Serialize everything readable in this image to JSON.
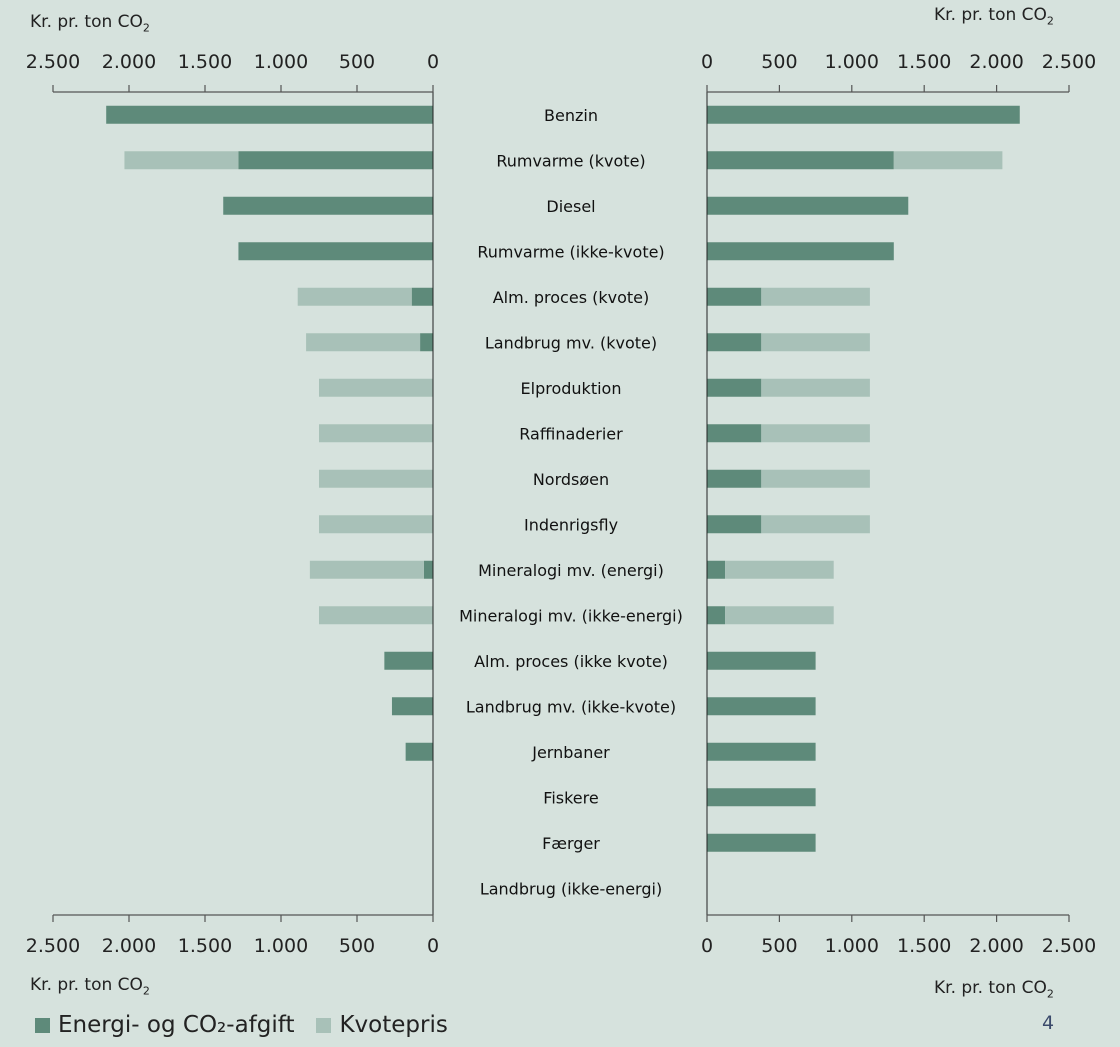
{
  "axis_unit_label": "Kr. pr.  ton CO",
  "axis_unit_sub": "2",
  "legend": [
    {
      "label": "Energi- og CO₂-afgift",
      "color": "#5e8a7a"
    },
    {
      "label": "Kvotepris",
      "color": "#a8c1b8"
    }
  ],
  "page_number": "4",
  "colors": {
    "background": "#d6e2dd",
    "energy": "#5e8a7a",
    "quota": "#a8c1b8",
    "axis": "#555555"
  },
  "chart_data": [
    {
      "type": "bar",
      "orientation": "horizontal",
      "stacked": true,
      "reversed_x": true,
      "xlabel": "Kr. pr.  ton CO2",
      "xlim": [
        0,
        2500
      ],
      "ticks": [
        2500,
        2000,
        1500,
        1000,
        500,
        0
      ],
      "tick_labels": [
        "2.500",
        "2.000",
        "1.500",
        "1.000",
        "500",
        "0"
      ],
      "categories": [
        "Benzin",
        "Rumvarme (kvote)",
        "Diesel",
        "Rumvarme (ikke-kvote)",
        "Alm. proces (kvote)",
        "Landbrug mv. (kvote)",
        "Elproduktion",
        "Raffinaderier",
        "Nordsøen",
        "Indenrigsfly",
        "Mineralogi mv. (energi)",
        "Mineralogi mv. (ikke-energi)",
        "Alm. proces (ikke kvote)",
        "Landbrug mv. (ikke-kvote)",
        "Jernbaner",
        "Fiskere",
        "Færger",
        "Landbrug (ikke-energi)"
      ],
      "series": [
        {
          "name": "Energi- og CO₂-afgift",
          "values": [
            2150,
            1280,
            1380,
            1280,
            140,
            85,
            0,
            0,
            0,
            0,
            60,
            0,
            320,
            270,
            180,
            0,
            0,
            0
          ]
        },
        {
          "name": "Kvotepris",
          "values": [
            0,
            750,
            0,
            0,
            750,
            750,
            750,
            750,
            750,
            750,
            750,
            750,
            0,
            0,
            0,
            0,
            0,
            0
          ]
        }
      ]
    },
    {
      "type": "bar",
      "orientation": "horizontal",
      "stacked": true,
      "xlabel": "Kr. pr.  ton CO2",
      "xlim": [
        0,
        2500
      ],
      "ticks": [
        0,
        500,
        1000,
        1500,
        2000,
        2500
      ],
      "tick_labels": [
        "0",
        "500",
        "1.000",
        "1.500",
        "2.000",
        "2.500"
      ],
      "categories": [
        "Benzin",
        "Rumvarme (kvote)",
        "Diesel",
        "Rumvarme (ikke-kvote)",
        "Alm. proces (kvote)",
        "Landbrug mv. (kvote)",
        "Elproduktion",
        "Raffinaderier",
        "Nordsøen",
        "Indenrigsfly",
        "Mineralogi mv. (energi)",
        "Mineralogi mv. (ikke-energi)",
        "Alm. proces (ikke kvote)",
        "Landbrug mv. (ikke-kvote)",
        "Jernbaner",
        "Fiskere",
        "Færger",
        "Landbrug (ikke-energi)"
      ],
      "series": [
        {
          "name": "Energi- og CO₂-afgift",
          "values": [
            2160,
            1290,
            1390,
            1290,
            375,
            375,
            375,
            375,
            375,
            375,
            125,
            125,
            750,
            750,
            750,
            750,
            750,
            0
          ]
        },
        {
          "name": "Kvotepris",
          "values": [
            0,
            750,
            0,
            0,
            750,
            750,
            750,
            750,
            750,
            750,
            750,
            750,
            0,
            0,
            0,
            0,
            0,
            0
          ]
        }
      ]
    }
  ]
}
